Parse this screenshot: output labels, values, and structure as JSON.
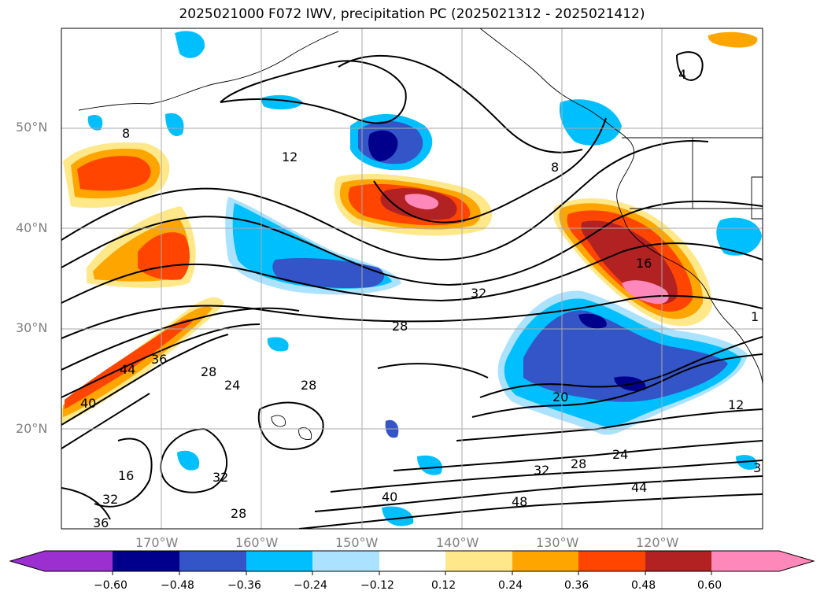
{
  "title": "2025021000 F072 IWV, precipitation PC (2025021312 - 2025021412)",
  "lat_labels": [
    "50°N",
    "40°N",
    "30°N",
    "20°N"
  ],
  "lon_labels": [
    "170°W",
    "160°W",
    "150°W",
    "140°W",
    "130°W",
    "120°W"
  ],
  "contour_labels": [
    "4",
    "8",
    "8",
    "12",
    "16",
    "20",
    "24",
    "24",
    "28",
    "28",
    "28",
    "28",
    "32",
    "32",
    "32",
    "32",
    "36",
    "36",
    "40",
    "40",
    "44",
    "44",
    "48",
    "12",
    "16",
    "28",
    "3",
    "1"
  ],
  "colorbar": {
    "ticks": [
      "−0.60",
      "−0.48",
      "−0.36",
      "−0.24",
      "−0.12",
      "0.12",
      "0.24",
      "0.36",
      "0.48",
      "0.60"
    ],
    "colors": [
      "#9b2fd0",
      "#00008c",
      "#3355c8",
      "#00bfff",
      "#aae2ff",
      "#ffffff",
      "#ffe88a",
      "#ffa500",
      "#ff4500",
      "#b22222",
      "#ff88bb"
    ]
  }
}
